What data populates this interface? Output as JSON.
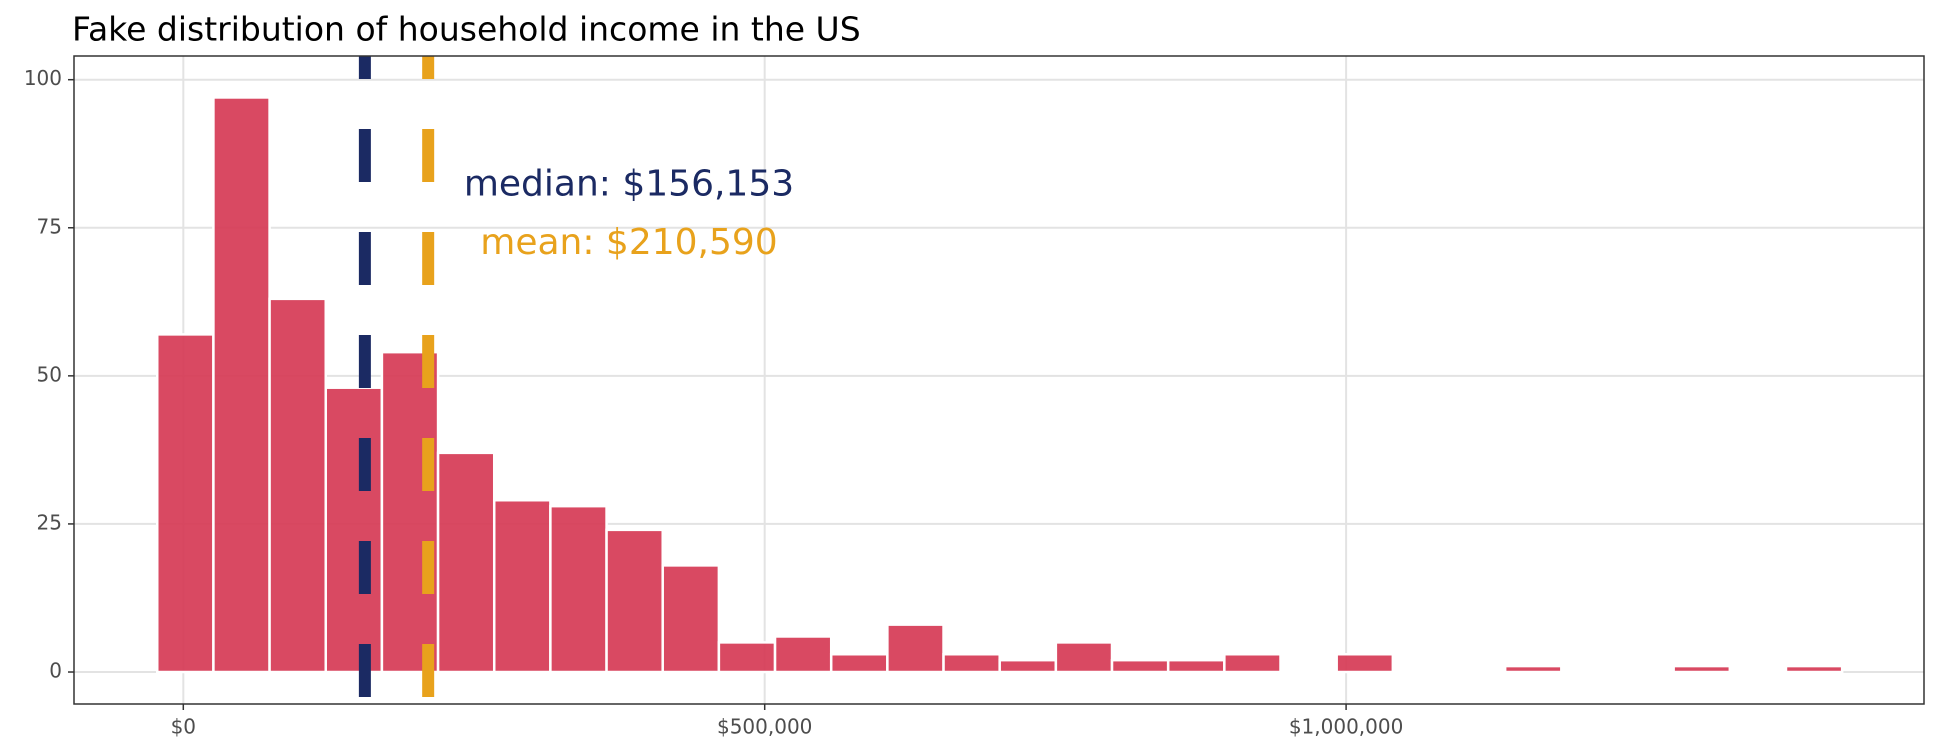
{
  "chart_data": {
    "type": "histogram",
    "title": "Fake distribution of household income in the US",
    "bins": [
      -22400,
      25900,
      74200,
      122500,
      170800,
      219100,
      267400,
      315700,
      364000,
      412300,
      460600,
      508900,
      557200,
      605500,
      653800,
      702100,
      750400,
      798700,
      847000,
      895300,
      943600,
      991900,
      1040200,
      1088500,
      1136800,
      1185100,
      1233400,
      1281700,
      1330000,
      1378300,
      1426600
    ],
    "values": [
      57,
      97,
      63,
      48,
      54,
      37,
      29,
      28,
      24,
      18,
      5,
      6,
      3,
      8,
      3,
      2,
      5,
      2,
      2,
      3,
      0,
      3,
      0,
      0,
      1,
      0,
      0,
      1,
      0,
      1
    ],
    "color": "#d63a55",
    "xlim": [
      -94000,
      1497000
    ],
    "ylim": [
      -5.4,
      104
    ],
    "xticks": [
      {
        "value": 0,
        "label": "$0"
      },
      {
        "value": 500000,
        "label": "$500,000"
      },
      {
        "value": 1000000,
        "label": "$1,000,000"
      }
    ],
    "yticks": [
      0,
      25,
      50,
      75,
      100
    ],
    "grid": true,
    "reference_lines": [
      {
        "value": 156153,
        "label": "median: $156,153",
        "color": "#1b2a63"
      },
      {
        "value": 210590,
        "label": "mean: $210,590",
        "color": "#e8a21c"
      }
    ]
  }
}
